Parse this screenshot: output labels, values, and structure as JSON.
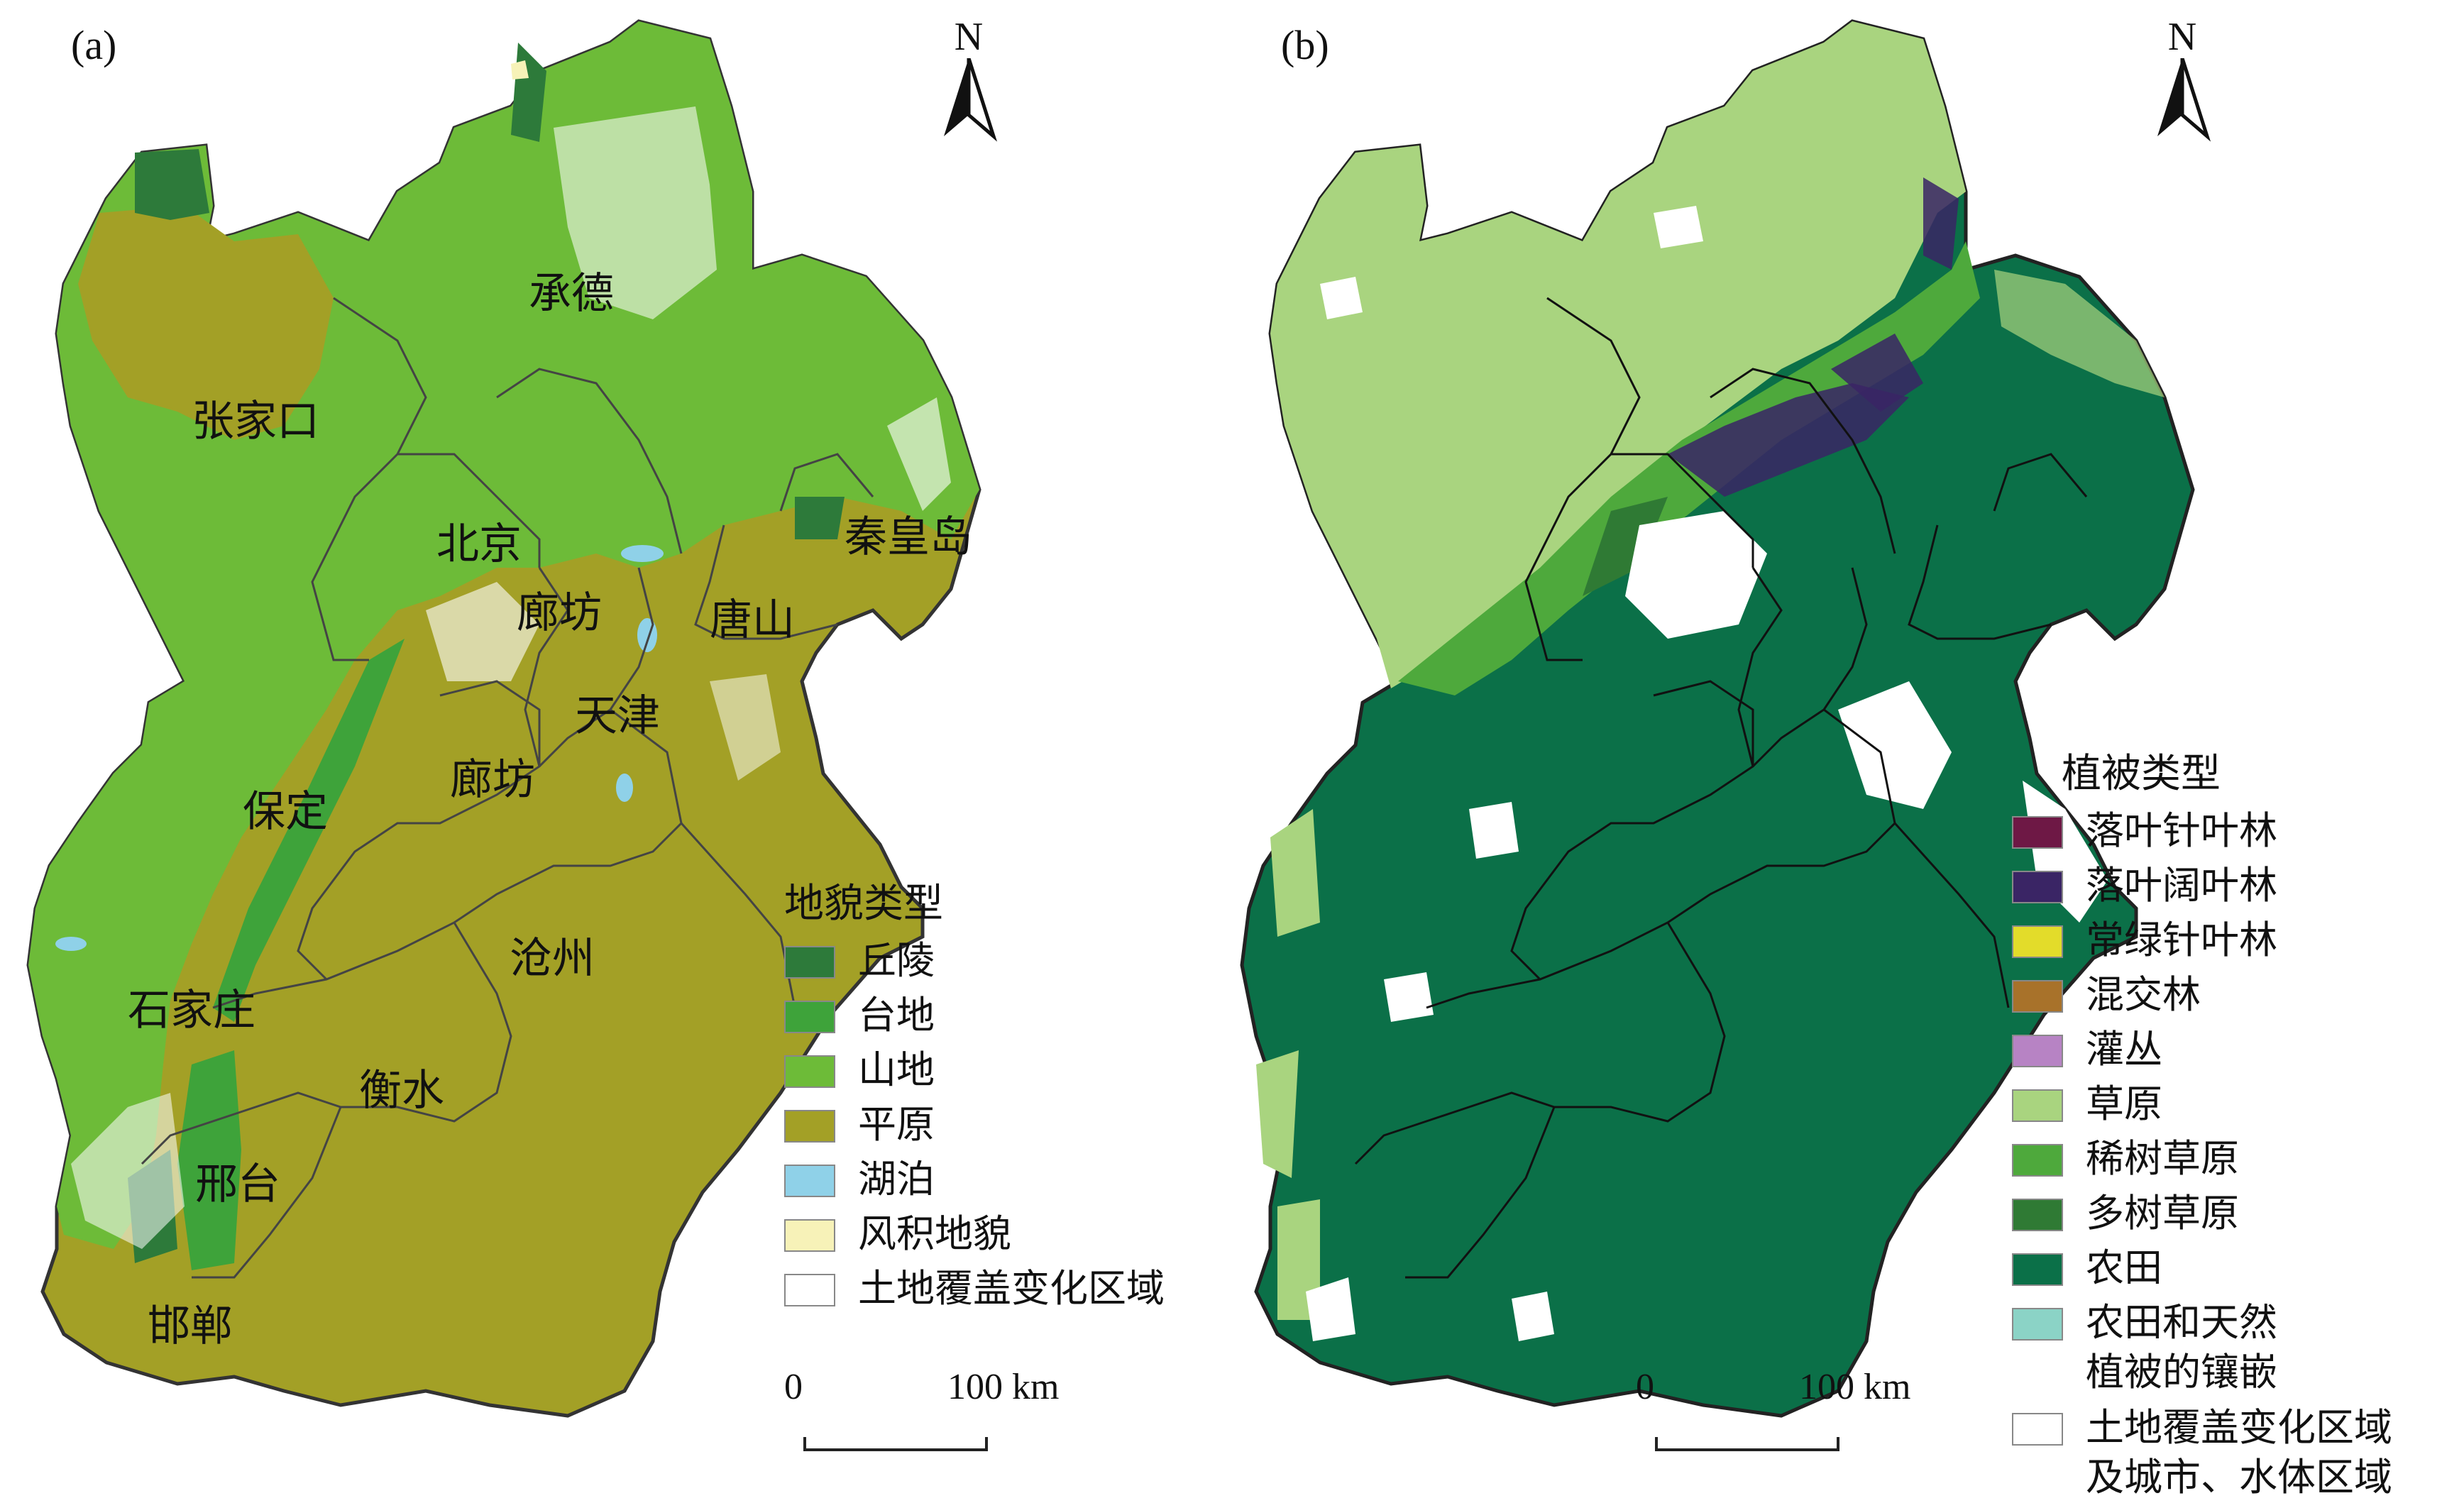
{
  "panel_a": {
    "label": "(a)",
    "north": "N",
    "cities": [
      "承德",
      "张家口",
      "北京",
      "秦皇岛",
      "廊坊",
      "唐山",
      "天津",
      "廊坊",
      "保定",
      "沧州",
      "石家庄",
      "衡水",
      "邢台",
      "邯郸"
    ],
    "legend": {
      "title": "地貌类型",
      "items": [
        {
          "label": "丘陵",
          "color": "#2d7a3a"
        },
        {
          "label": "台地",
          "color": "#3ea33a"
        },
        {
          "label": "山地",
          "color": "#6dbb38"
        },
        {
          "label": "平原",
          "color": "#a3a026"
        },
        {
          "label": "湖泊",
          "color": "#8fd1e8"
        },
        {
          "label": "风积地貌",
          "color": "#f7f2b8"
        },
        {
          "label": "土地覆盖变化区域",
          "color": "#ffffff"
        }
      ]
    },
    "scale": {
      "start": "0",
      "end": "100 km"
    }
  },
  "panel_b": {
    "label": "(b)",
    "north": "N",
    "legend": {
      "title": "植被类型",
      "items": [
        {
          "label": "落叶针叶林",
          "color": "#6e1845"
        },
        {
          "label": "落叶阔叶林",
          "color": "#3a2565"
        },
        {
          "label": "常绿针叶林",
          "color": "#e3dc2a"
        },
        {
          "label": "混交林",
          "color": "#a8722a"
        },
        {
          "label": "灌丛",
          "color": "#b783c4"
        },
        {
          "label": "草原",
          "color": "#a9d47f"
        },
        {
          "label": "稀树草原",
          "color": "#4ea93c"
        },
        {
          "label": "多树草原",
          "color": "#2f7a34"
        },
        {
          "label": "农田",
          "color": "#0b7048"
        },
        {
          "label": "农田和天然\n植被的镶嵌",
          "color": "#8bd3c6"
        },
        {
          "label": "土地覆盖变化区域\n及城市、水体区域",
          "color": "#ffffff"
        }
      ]
    },
    "scale": {
      "start": "0",
      "end": "100 km"
    }
  }
}
